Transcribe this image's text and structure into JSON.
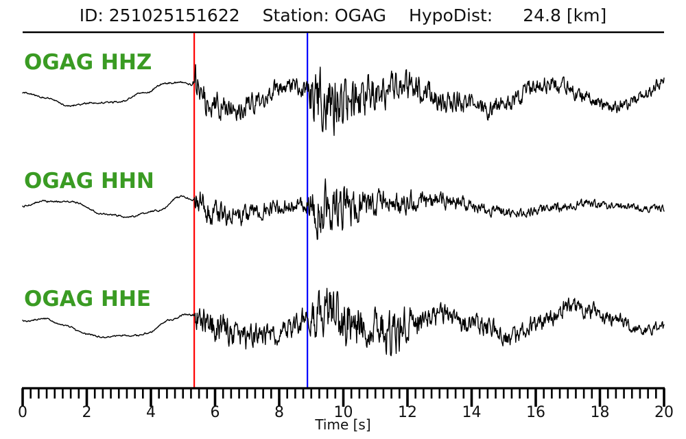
{
  "header": {
    "id_label": "ID:",
    "id_value": "251025151622",
    "station_label": "Station:",
    "station_value": "OGAG",
    "hypodist_label": "HypoDist:",
    "hypodist_value": "24.8",
    "hypodist_unit": "[km]"
  },
  "colors": {
    "background": "#ffffff",
    "trace": "#000000",
    "axis": "#000000",
    "text": "#111111",
    "trace_label_green": "#3a9b23",
    "p_pick_red": "#ff0000",
    "s_pick_blue": "#0000ff"
  },
  "chart_data": {
    "type": "line",
    "title": "ID: 251025151622   Station: OGAG   HypoDist:    24.8 [km]",
    "xlabel": "Time [s]",
    "x_range": [
      0,
      20
    ],
    "x_major_ticks": [
      0,
      2,
      4,
      6,
      8,
      10,
      12,
      14,
      16,
      18,
      20
    ],
    "x_minor_step": 0.25,
    "grid": "off",
    "legend": "none",
    "amplitude_units": "pixels relative to each trace centerline (positive = up); waveform = drift + envelope-scaled band-limited noise",
    "picks": [
      {
        "name": "P-pick",
        "time_s": 5.35,
        "color": "#ff0000"
      },
      {
        "name": "S-pick",
        "time_s": 8.88,
        "color": "#0000ff"
      }
    ],
    "traces": [
      {
        "label": "OGAG HHZ",
        "seed": 7,
        "drift": [
          [
            0,
            7
          ],
          [
            0.8,
            -2
          ],
          [
            1.4,
            -11
          ],
          [
            2.2,
            -8
          ],
          [
            3.0,
            -6
          ],
          [
            3.8,
            6
          ],
          [
            4.4,
            20
          ],
          [
            5.0,
            21
          ],
          [
            5.35,
            16
          ],
          [
            5.9,
            -12
          ],
          [
            6.6,
            -16
          ],
          [
            7.4,
            -5
          ],
          [
            8.0,
            14
          ],
          [
            8.5,
            20
          ],
          [
            8.8,
            12
          ],
          [
            9.2,
            -5
          ],
          [
            9.8,
            -15
          ],
          [
            10.5,
            -5
          ],
          [
            11.2,
            8
          ],
          [
            12.0,
            16
          ],
          [
            12.6,
            8
          ],
          [
            13.2,
            -10
          ],
          [
            13.8,
            -5
          ],
          [
            14.4,
            -18
          ],
          [
            15.2,
            -8
          ],
          [
            16.0,
            16
          ],
          [
            16.8,
            20
          ],
          [
            17.4,
            5
          ],
          [
            18.2,
            -16
          ],
          [
            18.8,
            -12
          ],
          [
            19.4,
            4
          ],
          [
            20,
            24
          ]
        ],
        "envelope": [
          [
            0,
            1.5
          ],
          [
            5.3,
            1.5
          ],
          [
            5.4,
            45
          ],
          [
            5.8,
            28
          ],
          [
            6.6,
            24
          ],
          [
            7.5,
            19
          ],
          [
            8.4,
            17
          ],
          [
            8.85,
            20
          ],
          [
            9.0,
            52
          ],
          [
            9.4,
            68
          ],
          [
            10.0,
            48
          ],
          [
            10.8,
            38
          ],
          [
            11.6,
            30
          ],
          [
            12.5,
            26
          ],
          [
            13.5,
            22
          ],
          [
            14.5,
            20
          ],
          [
            15.5,
            18
          ],
          [
            16.5,
            16
          ],
          [
            17.5,
            15
          ],
          [
            18.5,
            13
          ],
          [
            19.2,
            11
          ],
          [
            20,
            12
          ]
        ]
      },
      {
        "label": "OGAG HHN",
        "seed": 13,
        "drift": [
          [
            0,
            0
          ],
          [
            0.7,
            8
          ],
          [
            1.5,
            5
          ],
          [
            2.5,
            -12
          ],
          [
            3.3,
            -16
          ],
          [
            4.2,
            -8
          ],
          [
            5.0,
            14
          ],
          [
            5.35,
            9
          ],
          [
            6.0,
            -10
          ],
          [
            6.6,
            -16
          ],
          [
            7.3,
            -8
          ],
          [
            8.0,
            -2
          ],
          [
            8.85,
            2
          ],
          [
            9.5,
            -8
          ],
          [
            10.2,
            -2
          ],
          [
            11.0,
            2
          ],
          [
            12.0,
            4
          ],
          [
            12.8,
            8
          ],
          [
            13.6,
            4
          ],
          [
            14.5,
            -6
          ],
          [
            15.5,
            -10
          ],
          [
            16.5,
            -2
          ],
          [
            17.5,
            2
          ],
          [
            18.5,
            -2
          ],
          [
            19.3,
            -4
          ],
          [
            20,
            -3
          ]
        ],
        "envelope": [
          [
            0,
            1.5
          ],
          [
            5.3,
            1.5
          ],
          [
            5.4,
            30
          ],
          [
            6.2,
            24
          ],
          [
            7.0,
            18
          ],
          [
            8.0,
            15
          ],
          [
            8.85,
            16
          ],
          [
            9.0,
            52
          ],
          [
            9.4,
            58
          ],
          [
            10.0,
            40
          ],
          [
            10.8,
            30
          ],
          [
            11.6,
            24
          ],
          [
            12.5,
            20
          ],
          [
            13.5,
            15
          ],
          [
            14.5,
            12
          ],
          [
            15.5,
            10
          ],
          [
            16.5,
            11
          ],
          [
            17.5,
            9
          ],
          [
            18.5,
            8
          ],
          [
            19.2,
            8
          ],
          [
            20,
            7
          ]
        ]
      },
      {
        "label": "OGAG HHE",
        "seed": 29,
        "drift": [
          [
            0,
            0
          ],
          [
            0.6,
            4
          ],
          [
            1.2,
            -4
          ],
          [
            2.0,
            -18
          ],
          [
            2.6,
            -23
          ],
          [
            3.2,
            -21
          ],
          [
            3.9,
            -16
          ],
          [
            4.6,
            2
          ],
          [
            5.1,
            9
          ],
          [
            5.35,
            7
          ],
          [
            6.0,
            -8
          ],
          [
            7.0,
            -24
          ],
          [
            7.8,
            -20
          ],
          [
            8.4,
            -10
          ],
          [
            8.85,
            2
          ],
          [
            9.5,
            8
          ],
          [
            10.2,
            -2
          ],
          [
            11.0,
            -10
          ],
          [
            11.5,
            -20
          ],
          [
            12.2,
            -2
          ],
          [
            13.0,
            4
          ],
          [
            14.0,
            -4
          ],
          [
            15.3,
            -24
          ],
          [
            16.2,
            2
          ],
          [
            17.0,
            18
          ],
          [
            17.6,
            16
          ],
          [
            18.4,
            4
          ],
          [
            19.2,
            -14
          ],
          [
            20,
            -8
          ]
        ],
        "envelope": [
          [
            0,
            1.5
          ],
          [
            5.3,
            1.5
          ],
          [
            5.4,
            30
          ],
          [
            6.4,
            27
          ],
          [
            7.4,
            23
          ],
          [
            8.3,
            22
          ],
          [
            8.85,
            24
          ],
          [
            9.1,
            40
          ],
          [
            9.4,
            64
          ],
          [
            10.2,
            56
          ],
          [
            10.8,
            34
          ],
          [
            11.3,
            46
          ],
          [
            11.8,
            40
          ],
          [
            12.4,
            28
          ],
          [
            13.4,
            24
          ],
          [
            14.4,
            21
          ],
          [
            15.4,
            19
          ],
          [
            16.4,
            21
          ],
          [
            17.4,
            17
          ],
          [
            18.4,
            15
          ],
          [
            19.2,
            12
          ],
          [
            20,
            10
          ]
        ]
      }
    ]
  }
}
